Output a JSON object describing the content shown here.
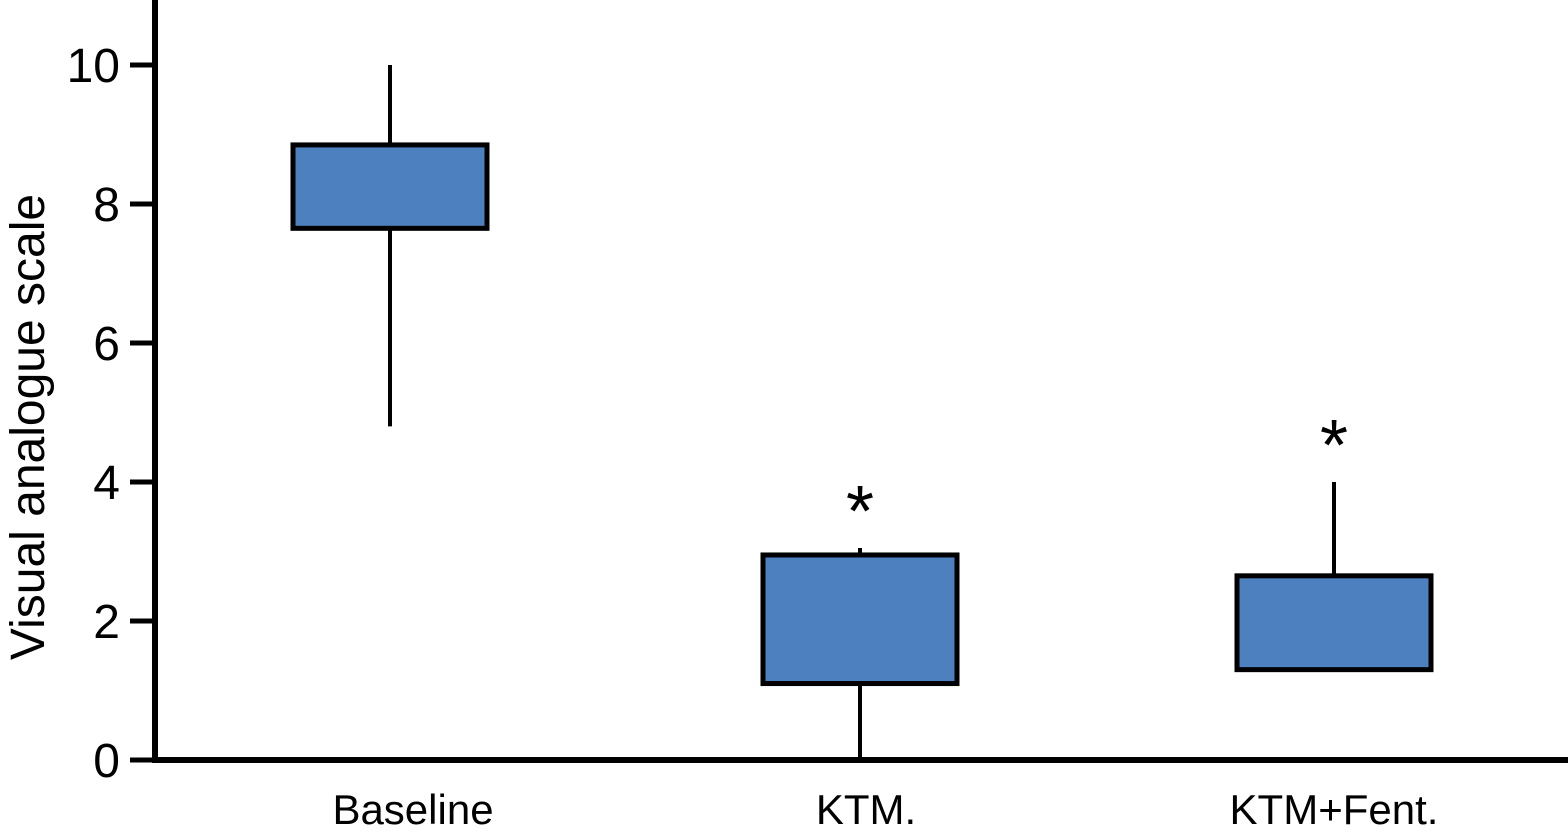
{
  "chart_data": {
    "type": "boxplot",
    "title": "",
    "xlabel": "",
    "ylabel": "Visual analogue scale",
    "ylim": [
      0,
      11
    ],
    "yticks": [
      0,
      2,
      4,
      6,
      8,
      10
    ],
    "grid": "off",
    "legend": "none",
    "categories": [
      "Baseline",
      "KTM.",
      "KTM+Fent."
    ],
    "series": [
      {
        "category": "Baseline",
        "q1": 7.65,
        "q3": 8.85,
        "whisker_low": 4.8,
        "whisker_high": 10.0,
        "annotation": ""
      },
      {
        "category": "KTM.",
        "q1": 1.1,
        "q3": 2.95,
        "whisker_low": 0.0,
        "whisker_high": 3.05,
        "annotation": "*"
      },
      {
        "category": "KTM+Fent.",
        "q1": 1.3,
        "q3": 2.65,
        "whisker_low": null,
        "whisker_high": 4.0,
        "annotation": "*"
      }
    ],
    "colors": {
      "box_fill": "#4C80BE",
      "box_border": "#000000",
      "axis": "#000000",
      "text": "#000000"
    }
  }
}
